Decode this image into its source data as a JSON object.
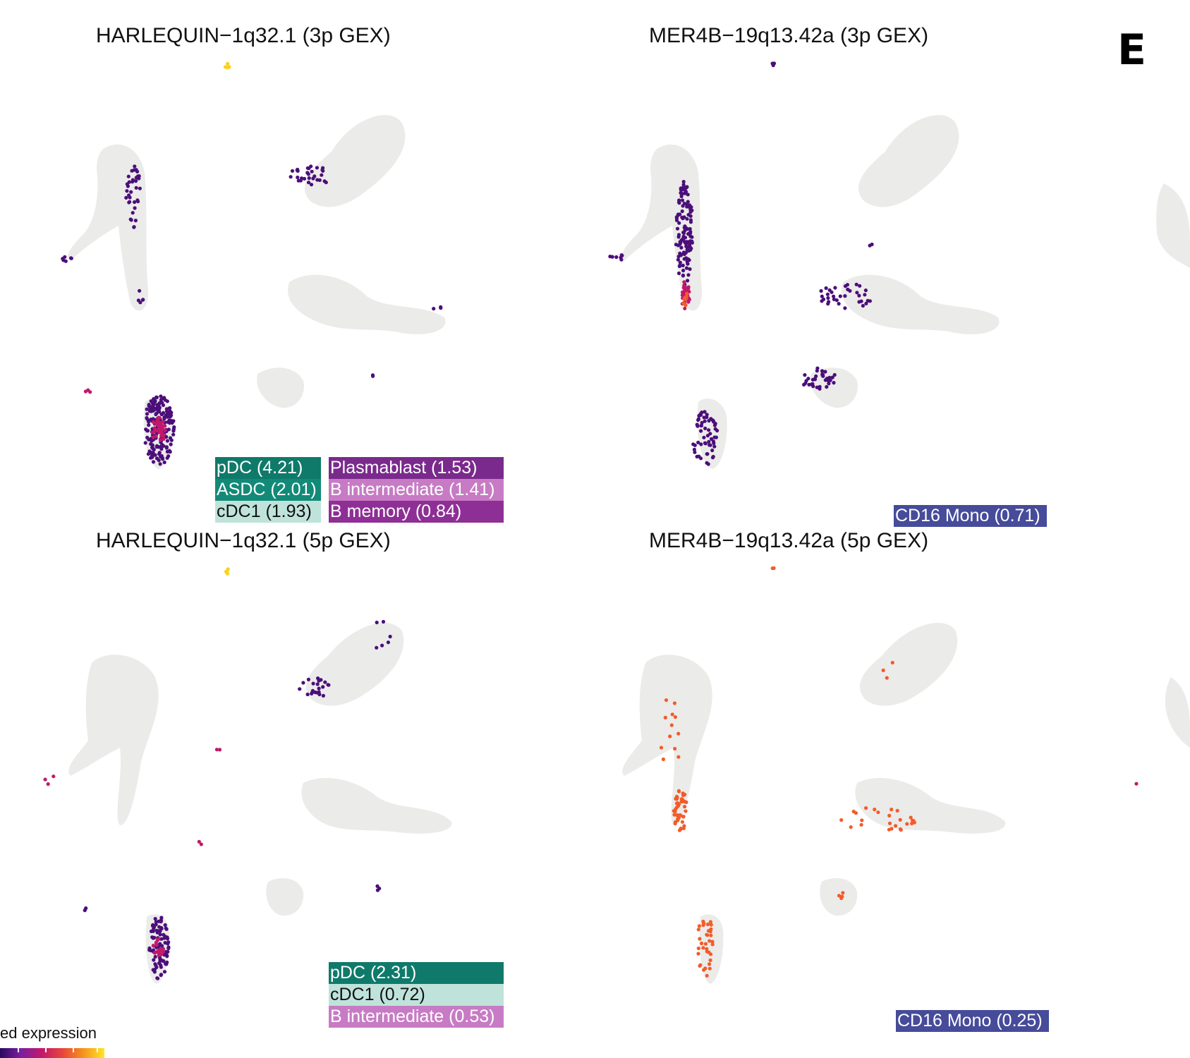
{
  "figure_letter": "E",
  "legend": {
    "title": "ed expression",
    "gradient": [
      "#2a0a5e",
      "#7b1fa2",
      "#c2186b",
      "#e8453c",
      "#f7941d",
      "#fde725"
    ]
  },
  "colors": {
    "background_cells": "#e6e6e4",
    "low_expression": "#4b0e7a",
    "mid_expression": "#c2186b",
    "high_expression": "#f25c2a",
    "top_expression": "#fbd11c"
  },
  "chart_data": [
    {
      "type": "scatter",
      "title": "HARLEQUIN−1q32.1 (3p GEX)",
      "celltype_scores": [
        {
          "label": "pDC (4.21)",
          "bg": "#0f7a6a",
          "fg": "#ffffff"
        },
        {
          "label": "ASDC (2.01)",
          "bg": "#138a78",
          "fg": "#ffffff"
        },
        {
          "label": "cDC1 (1.93)",
          "bg": "#bfe3da",
          "fg": "#111111"
        },
        {
          "label": "Plasmablast (1.53)",
          "bg": "#7a2a8c",
          "fg": "#ffffff"
        },
        {
          "label": "B intermediate (1.41)",
          "bg": "#c77bc4",
          "fg": "#ffffff"
        },
        {
          "label": "B memory (0.84)",
          "bg": "#8e2f95",
          "fg": "#ffffff"
        }
      ]
    },
    {
      "type": "scatter",
      "title": "MER4B−19q13.42a (3p GEX)",
      "celltype_scores": [
        {
          "label": "CD16 Mono (0.71)",
          "bg": "#464b9a",
          "fg": "#ffffff"
        }
      ]
    },
    {
      "type": "scatter",
      "title": "HARLEQUIN−1q32.1 (5p GEX)",
      "celltype_scores": [
        {
          "label": "pDC (2.31)",
          "bg": "#0f7a6a",
          "fg": "#ffffff"
        },
        {
          "label": "cDC1 (0.72)",
          "bg": "#bfe3da",
          "fg": "#111111"
        },
        {
          "label": "B intermediate (0.53)",
          "bg": "#c77bc4",
          "fg": "#ffffff"
        }
      ]
    },
    {
      "type": "scatter",
      "title": "MER4B−19q13.42a (5p GEX)",
      "celltype_scores": [
        {
          "label": "CD16 Mono (0.25)",
          "bg": "#464b9a",
          "fg": "#ffffff"
        }
      ]
    }
  ]
}
